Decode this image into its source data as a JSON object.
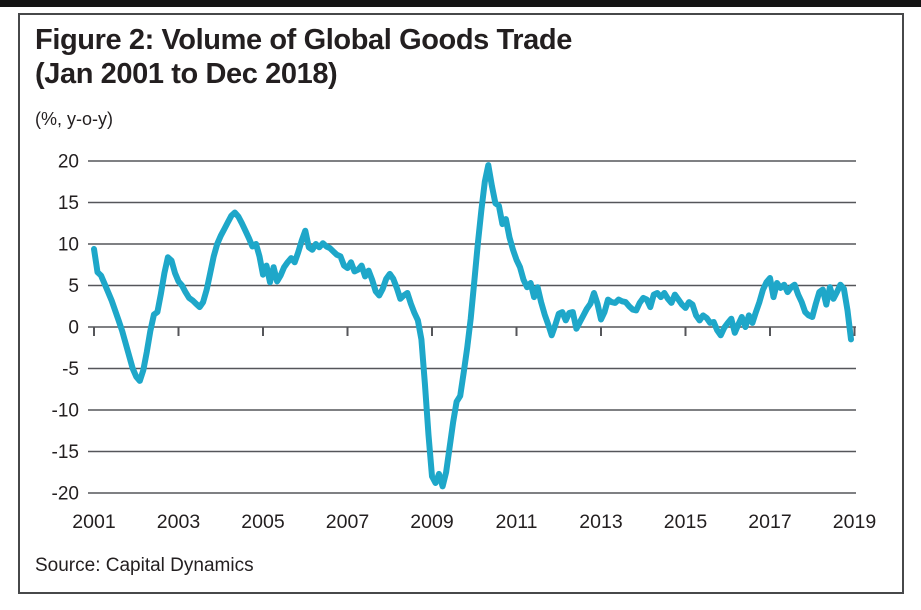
{
  "figure": {
    "title_line1": "Figure 2: Volume of Global Goods Trade",
    "title_line2": "(Jan 2001 to Dec 2018)",
    "unit_label": "(%, y-o-y)",
    "source": "Source: Capital Dynamics"
  },
  "chart_data": {
    "type": "line",
    "title": "Figure 2: Volume of Global Goods Trade (Jan 2001 to Dec 2018)",
    "ylabel": "(%, y-o-y)",
    "xlabel": "",
    "frequency": "monthly",
    "x_start": "2001-01",
    "x_end": "2018-12",
    "ylim": [
      -20,
      20
    ],
    "y_ticks": [
      20,
      15,
      10,
      5,
      0,
      -5,
      -10,
      -15,
      -20
    ],
    "x_ticks": [
      2001,
      2003,
      2005,
      2007,
      2009,
      2011,
      2013,
      2015,
      2017,
      2019
    ],
    "grid": true,
    "legend_position": "none",
    "line_color": "#1EA7C9",
    "text_color": "#231F20",
    "grid_color": "#55565A",
    "series": [
      {
        "name": "Volume of global goods trade (%, y-o-y)",
        "values": [
          9.4,
          6.6,
          6.2,
          5.2,
          4.2,
          3.2,
          2.0,
          0.8,
          -0.5,
          -2.0,
          -3.5,
          -5.0,
          -6.0,
          -6.5,
          -5.2,
          -3.0,
          -0.5,
          1.5,
          1.8,
          4.0,
          6.5,
          8.4,
          8.0,
          6.5,
          5.5,
          5.0,
          4.2,
          3.5,
          3.2,
          2.8,
          2.4,
          3.0,
          4.5,
          6.5,
          8.5,
          10.0,
          11.0,
          11.8,
          12.6,
          13.4,
          13.8,
          13.3,
          12.5,
          11.6,
          10.7,
          9.7,
          10.0,
          8.5,
          6.3,
          7.4,
          5.4,
          7.2,
          5.5,
          6.2,
          7.2,
          7.8,
          8.3,
          7.8,
          9.0,
          10.4,
          11.6,
          9.6,
          9.3,
          10.0,
          9.6,
          10.1,
          9.7,
          9.5,
          9.1,
          8.7,
          8.5,
          7.4,
          7.1,
          7.8,
          6.7,
          6.9,
          7.4,
          6.1,
          6.8,
          5.7,
          4.3,
          3.8,
          4.6,
          5.8,
          6.4,
          5.8,
          4.7,
          3.4,
          3.8,
          4.1,
          2.8,
          1.7,
          0.8,
          -1.5,
          -7.0,
          -13.0,
          -18.0,
          -18.8,
          -17.7,
          -19.2,
          -17.5,
          -14.5,
          -11.5,
          -9.0,
          -8.3,
          -5.5,
          -2.5,
          1.0,
          5.5,
          10.0,
          14.0,
          17.5,
          19.5,
          17.0,
          14.9,
          14.6,
          12.4,
          13.0,
          10.8,
          9.3,
          8.1,
          7.2,
          5.7,
          4.8,
          5.3,
          3.6,
          4.8,
          3.0,
          1.5,
          0.3,
          -1.0,
          0.2,
          1.6,
          1.8,
          0.8,
          1.7,
          1.8,
          -0.2,
          0.6,
          1.4,
          2.2,
          2.8,
          4.1,
          2.8,
          0.9,
          1.8,
          3.3,
          3.0,
          2.9,
          3.3,
          3.1,
          3.0,
          2.5,
          2.1,
          2.0,
          2.9,
          3.5,
          3.3,
          2.4,
          3.9,
          4.1,
          3.6,
          4.1,
          3.4,
          2.9,
          3.9,
          3.3,
          2.7,
          2.3,
          3.0,
          2.7,
          1.4,
          0.8,
          1.4,
          1.1,
          0.5,
          0.6,
          -0.4,
          -1.0,
          -0.1,
          0.5,
          1.0,
          -0.7,
          0.3,
          1.2,
          0.0,
          1.4,
          0.5,
          1.8,
          3.0,
          4.5,
          5.4,
          5.9,
          3.6,
          5.3,
          4.7,
          5.1,
          4.2,
          4.8,
          5.1,
          3.9,
          3.0,
          1.8,
          1.4,
          1.2,
          2.8,
          4.2,
          4.5,
          2.7,
          4.8,
          3.4,
          4.2,
          5.1,
          4.6,
          2.0,
          -1.5
        ]
      }
    ]
  }
}
